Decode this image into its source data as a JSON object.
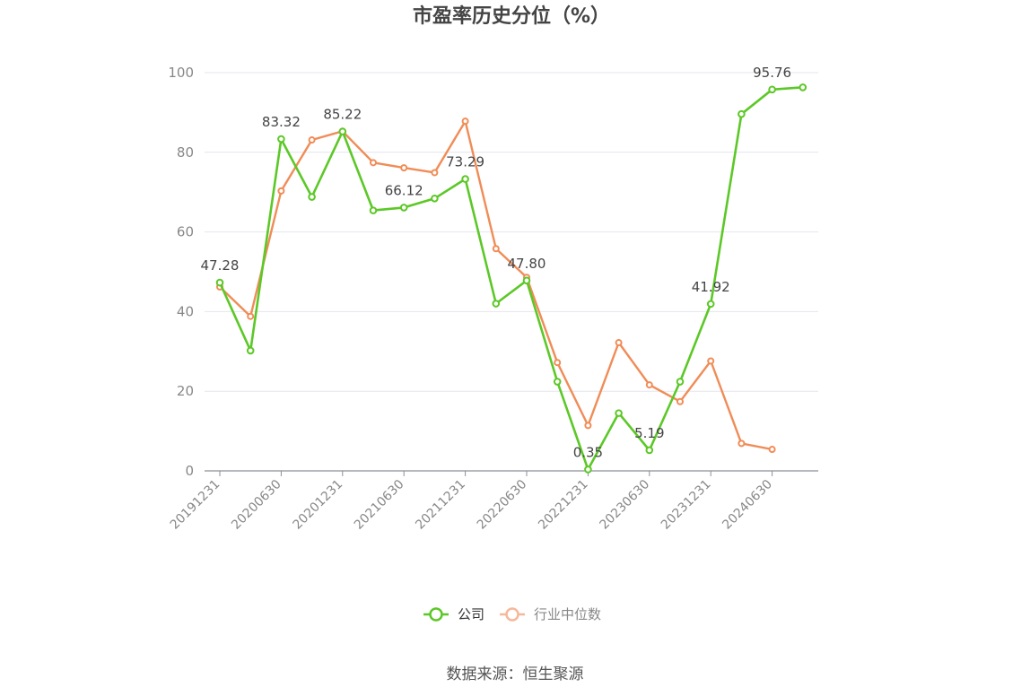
{
  "chart_data": {
    "type": "line",
    "title": "市盈率历史分位（%）",
    "x_tick_labels": [
      "20191231",
      "20200630",
      "20201231",
      "20210630",
      "20211231",
      "20220630",
      "20221231",
      "20230630",
      "20231231",
      "20240630"
    ],
    "y_ticks": [
      0,
      20,
      40,
      60,
      80,
      100
    ],
    "ylim": [
      0,
      100
    ],
    "grid": "horizontal",
    "legend_position": "bottom",
    "series": [
      {
        "name": "公司",
        "color": "#5cc827",
        "values": [
          47.28,
          30.2,
          83.32,
          68.8,
          85.22,
          65.4,
          66.12,
          68.4,
          73.29,
          42.0,
          47.8,
          22.4,
          0.35,
          14.5,
          5.19,
          22.4,
          41.92,
          89.6,
          95.76,
          96.3
        ],
        "labels": [
          "47.28",
          "",
          "83.32",
          "",
          "85.22",
          "",
          "66.12",
          "",
          "73.29",
          "",
          "47.80",
          "",
          "0.35",
          "",
          "5.19",
          "",
          "41.92",
          "",
          "95.76",
          ""
        ]
      },
      {
        "name": "行业中位数",
        "color": "#f08c57",
        "values": [
          46.2,
          38.8,
          70.3,
          83.1,
          85.3,
          77.4,
          76.1,
          74.9,
          87.8,
          55.8,
          48.6,
          27.2,
          11.4,
          32.2,
          21.6,
          17.4,
          27.6,
          6.9,
          5.4,
          null
        ]
      }
    ]
  },
  "source": "数据来源：恒生聚源"
}
